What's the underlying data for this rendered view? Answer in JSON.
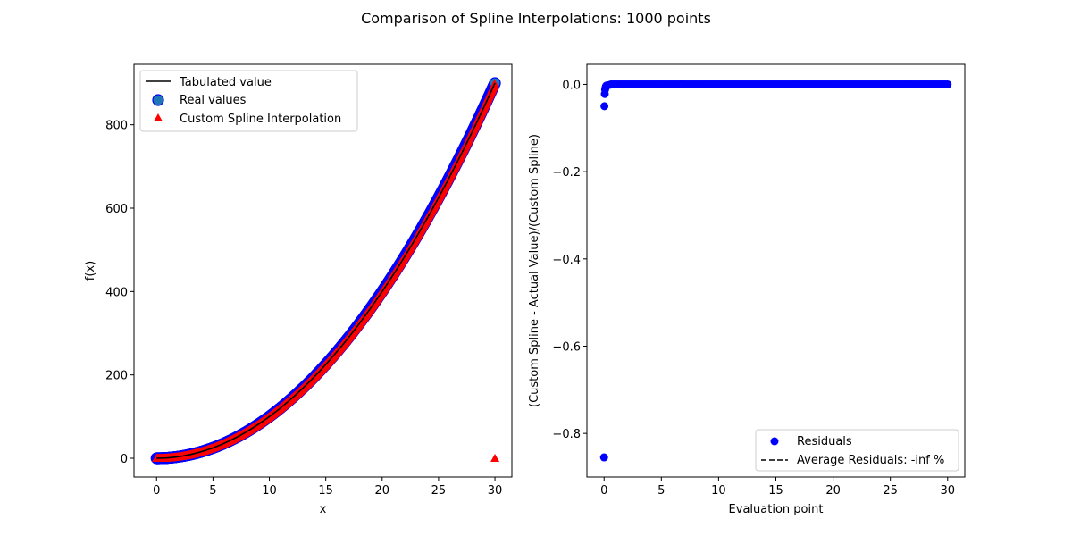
{
  "figure": {
    "suptitle": "Comparison of Spline Interpolations: 1000 points"
  },
  "chart_data": [
    {
      "type": "line",
      "xlabel": "x",
      "ylabel": "f(x)",
      "xlim": [
        -2,
        31.5
      ],
      "ylim": [
        -45,
        945
      ],
      "xticks": [
        0,
        5,
        10,
        15,
        20,
        25,
        30
      ],
      "yticks": [
        0,
        200,
        400,
        600,
        800
      ],
      "legend_position": "top-left",
      "x_domain": [
        0,
        30
      ],
      "point_count": 1000,
      "series": [
        {
          "name": "Tabulated value",
          "kind": "line",
          "color": "#000000",
          "formula": "x^2"
        },
        {
          "name": "Real values",
          "kind": "scatter",
          "marker": "circle",
          "color": "#1f77b4",
          "edge": "#0000ff",
          "formula": "x^2"
        },
        {
          "name": "Custom Spline Interpolation",
          "kind": "scatter",
          "marker": "triangle",
          "color": "#ff0000",
          "formula": "x^2",
          "outlier": {
            "x": 30,
            "y": 0
          }
        }
      ]
    },
    {
      "type": "scatter",
      "xlabel": "Evaluation point",
      "ylabel": "(Custom Spline -  Actual Value)/(Custom Spline)",
      "xlim": [
        -1.5,
        31.5
      ],
      "ylim": [
        -0.9,
        0.046
      ],
      "xticks": [
        0,
        5,
        10,
        15,
        20,
        25,
        30
      ],
      "yticks": [
        0.0,
        -0.2,
        -0.4,
        -0.6,
        -0.8
      ],
      "ytick_labels": [
        "0.0",
        "−0.2",
        "−0.4",
        "−0.6",
        "−0.8"
      ],
      "legend_position": "bottom-right",
      "series": [
        {
          "name": "Residuals",
          "kind": "scatter",
          "marker": "circle",
          "color": "#0000ff",
          "points": [
            [
              0.0,
              -0.855
            ],
            [
              0.03,
              -0.05
            ],
            [
              0.06,
              -0.022
            ],
            [
              0.09,
              -0.012
            ],
            [
              0.12,
              -0.008
            ],
            [
              0.15,
              -0.005
            ],
            [
              0.2,
              -0.003
            ],
            [
              0.3,
              -0.002
            ],
            [
              0.5,
              -0.001
            ]
          ],
          "rest": {
            "x_from": 0.6,
            "x_to": 30,
            "y": 0.0
          }
        },
        {
          "name": "Average Residuals: -inf %",
          "kind": "dashed-line",
          "color": "#000000"
        }
      ]
    }
  ]
}
